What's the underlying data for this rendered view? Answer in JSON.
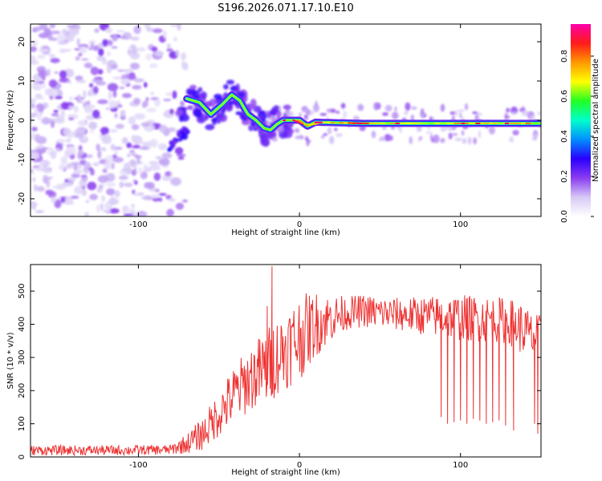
{
  "title": "S196.2026.071.17.10.E10",
  "colors": {
    "snr_line": "#ee3333",
    "frame": "#000000",
    "background": "#ffffff",
    "colorbar_stops": [
      "#ffffff",
      "#d6c9f5",
      "#8b3cf0",
      "#2a00ff",
      "#0090ff",
      "#00ffcc",
      "#22ff22",
      "#ffff00",
      "#ff9900",
      "#ff1a1a",
      "#ff00aa"
    ]
  },
  "chart_data": [
    {
      "type": "heatmap",
      "title": "",
      "xlabel": "Height of straight line (km)",
      "ylabel": "Frequency (Hz)",
      "xlim": [
        -167,
        150
      ],
      "ylim": [
        -24.5,
        24.5
      ],
      "xticks": [
        -100,
        0,
        100
      ],
      "yticks": [
        -20,
        -10,
        0,
        10,
        20
      ],
      "colorbar": {
        "label": "Normalized spectral amplitude",
        "range": [
          0.0,
          0.96
        ],
        "ticks": [
          "0.0",
          "0.2",
          "0.4",
          "0.6",
          "0.8"
        ]
      },
      "ridge": {
        "x": [
          -70,
          -62,
          -55,
          -48,
          -42,
          -37,
          -32,
          -27,
          -22,
          -18,
          -14,
          -10,
          -5,
          0,
          5,
          10,
          20,
          40,
          60,
          80,
          100,
          120,
          148
        ],
        "y": [
          5.5,
          4.5,
          1.5,
          4.0,
          6.5,
          5.0,
          1.5,
          0.0,
          -2.0,
          -2.5,
          -1.0,
          0.0,
          0.0,
          0.0,
          -1.5,
          -0.5,
          -0.6,
          -0.8,
          -0.8,
          -0.8,
          -0.8,
          -0.8,
          -0.8
        ],
        "peak_amplitude_zone_x": [
          -10,
          148
        ]
      },
      "noise_region_x": [
        -167,
        -78
      ]
    },
    {
      "type": "line",
      "title": "",
      "xlabel": "Height of straight line (km)",
      "ylabel": "SNR (10 * v/v)",
      "xlim": [
        -167,
        150
      ],
      "ylim": [
        0,
        580
      ],
      "xticks": [
        -100,
        0,
        100
      ],
      "yticks": [
        0,
        100,
        200,
        300,
        400,
        500
      ],
      "series": [
        {
          "x": [
            -167,
            -140,
            -110,
            -80,
            -70,
            -60,
            -50,
            -40,
            -30,
            -20,
            -15,
            -10,
            0,
            10,
            20,
            30,
            40,
            60,
            80,
            100,
            120,
            130,
            140,
            145,
            150
          ],
          "y": [
            20,
            20,
            20,
            22,
            40,
            70,
            130,
            190,
            240,
            270,
            300,
            320,
            360,
            400,
            420,
            435,
            440,
            430,
            425,
            420,
            415,
            410,
            380,
            360,
            370
          ],
          "noise_band": [
            [
              -167,
              15
            ],
            [
              -140,
              15
            ],
            [
              -110,
              15
            ],
            [
              -80,
              15
            ],
            [
              -70,
              30
            ],
            [
              -60,
              50
            ],
            [
              -50,
              70
            ],
            [
              -40,
              90
            ],
            [
              -30,
              100
            ],
            [
              -20,
              120
            ],
            [
              -10,
              120
            ],
            [
              0,
              130
            ],
            [
              10,
              100
            ],
            [
              20,
              70
            ],
            [
              30,
              50
            ],
            [
              40,
              50
            ],
            [
              60,
              50
            ],
            [
              80,
              60
            ],
            [
              100,
              70
            ],
            [
              120,
              70
            ],
            [
              130,
              70
            ],
            [
              140,
              80
            ],
            [
              150,
              60
            ]
          ],
          "spikes": [
            [
              -17,
              575
            ],
            [
              -20,
              455
            ],
            [
              88,
              120
            ],
            [
              92,
              100
            ],
            [
              96,
              105
            ],
            [
              100,
              110
            ],
            [
              104,
              100
            ],
            [
              108,
              115
            ],
            [
              112,
              110
            ],
            [
              116,
              100
            ],
            [
              120,
              105
            ],
            [
              124,
              110
            ],
            [
              128,
              95
            ],
            [
              133,
              80
            ],
            [
              146,
              100
            ],
            [
              148,
              70
            ]
          ]
        }
      ]
    }
  ]
}
